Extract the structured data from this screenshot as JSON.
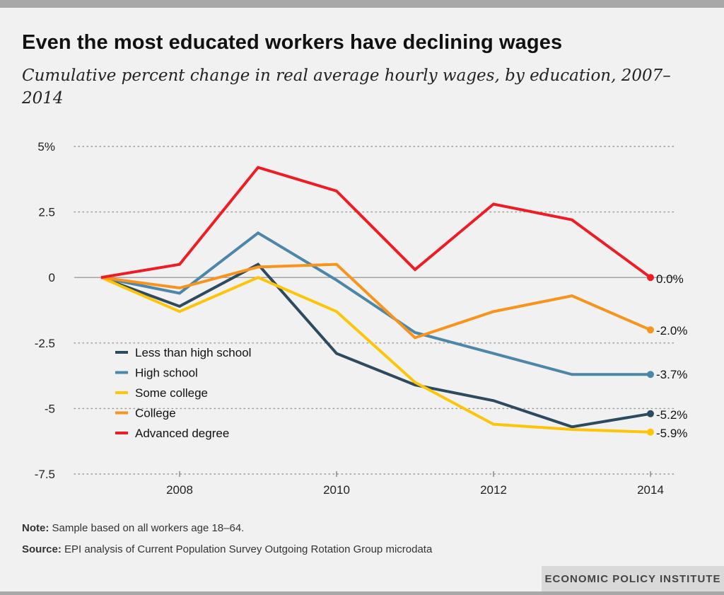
{
  "header": {
    "title": "Even the most educated workers have declining wages",
    "subtitle": "Cumulative percent change in real average hourly wages, by education, 2007–2014"
  },
  "footer": {
    "note_label": "Note:",
    "note_text": " Sample based on all workers age 18–64.",
    "source_label": "Source:",
    "source_text": " EPI analysis of Current Population Survey Outgoing Rotation Group microdata",
    "brand": "ECONOMIC POLICY INSTITUTE"
  },
  "chart_data": {
    "type": "line",
    "title": "Even the most educated workers have declining wages",
    "subtitle": "Cumulative percent change in real average hourly wages, by education, 2007–2014",
    "x": [
      2007,
      2008,
      2009,
      2010,
      2011,
      2012,
      2013,
      2014
    ],
    "x_ticks": [
      "2008",
      "2010",
      "2012",
      "2014"
    ],
    "y_ticks": [
      {
        "value": 5,
        "label": "5%"
      },
      {
        "value": 2.5,
        "label": "2.5"
      },
      {
        "value": 0,
        "label": "0"
      },
      {
        "value": -2.5,
        "label": "-2.5"
      },
      {
        "value": -5,
        "label": "-5"
      },
      {
        "value": -7.5,
        "label": "-7.5"
      }
    ],
    "ylim": [
      -7.5,
      5
    ],
    "xlim": [
      2007,
      2014
    ],
    "grid": "horizontal dotted",
    "legend_position": "lower-left",
    "series": [
      {
        "name": "Less than high school",
        "color": "#2d4a5e",
        "values": [
          0,
          -1.1,
          0.5,
          -2.9,
          -4.1,
          -4.7,
          -5.7,
          -5.2
        ],
        "end_label": "-5.2%"
      },
      {
        "name": "High school",
        "color": "#4c86a8",
        "values": [
          0,
          -0.6,
          1.7,
          -0.1,
          -2.1,
          -2.9,
          -3.7,
          -3.7
        ],
        "end_label": "-3.7%"
      },
      {
        "name": "Some college",
        "color": "#fcc50a",
        "values": [
          0,
          -1.3,
          0.0,
          -1.3,
          -4.0,
          -5.6,
          -5.8,
          -5.9
        ],
        "end_label": "-5.9%"
      },
      {
        "name": "College",
        "color": "#f7941d",
        "values": [
          0,
          -0.4,
          0.4,
          0.5,
          -2.3,
          -1.3,
          -0.7,
          -2.0
        ],
        "end_label": "-2.0%"
      },
      {
        "name": "Advanced degree",
        "color": "#ee1c25",
        "values": [
          0,
          0.5,
          4.2,
          3.3,
          0.3,
          2.8,
          2.2,
          0.0
        ],
        "end_label": "0.0%"
      }
    ]
  }
}
